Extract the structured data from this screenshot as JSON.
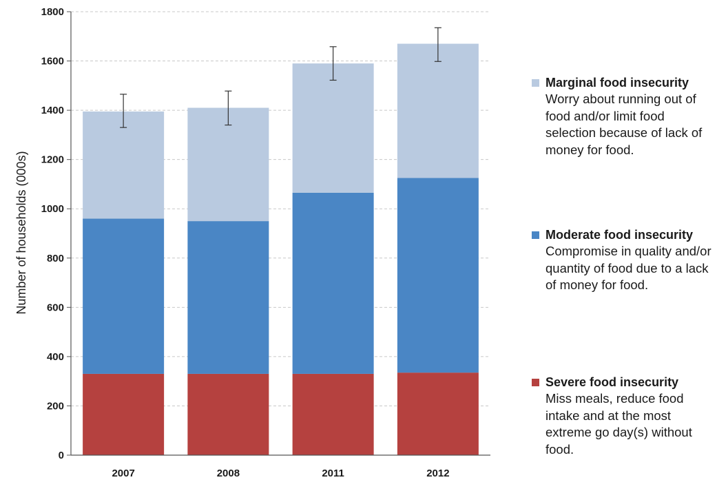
{
  "chart_data": {
    "type": "bar",
    "stacked": true,
    "categories": [
      "2007",
      "2008",
      "2011",
      "2012"
    ],
    "series": [
      {
        "name": "Severe food insecurity",
        "color": "#b5413f",
        "values": [
          330,
          330,
          330,
          335
        ]
      },
      {
        "name": "Moderate food insecurity",
        "color": "#4a86c5",
        "values": [
          630,
          620,
          735,
          790
        ]
      },
      {
        "name": "Marginal food insecurity",
        "color": "#b9cae0",
        "values": [
          435,
          460,
          525,
          545
        ]
      }
    ],
    "totals": [
      1395,
      1410,
      1590,
      1670
    ],
    "error_bars": [
      {
        "low": 1330,
        "high": 1465
      },
      {
        "low": 1340,
        "high": 1478
      },
      {
        "low": 1522,
        "high": 1658
      },
      {
        "low": 1598,
        "high": 1735
      }
    ],
    "ylabel": "Number of households (000s)",
    "xlabel": "",
    "ylim": [
      0,
      1800
    ],
    "yticks": [
      "0",
      "200",
      "400",
      "600",
      "800",
      "1000",
      "1200",
      "1400",
      "1600",
      "1800"
    ],
    "grid": "dashed horizontal",
    "legend_placement": "right"
  },
  "legend": [
    {
      "title": "Marginal food insecurity",
      "description": "Worry about running out of food and/or limit food selection because of lack of money for food.",
      "color": "#b9cae0"
    },
    {
      "title": "Moderate food insecurity",
      "description": "Compromise in quality and/or quantity of food due to a lack of money for food.",
      "color": "#4a86c5"
    },
    {
      "title": "Severe food insecurity",
      "description": "Miss meals, reduce food intake and at the most extreme go day(s) without food.",
      "color": "#b5413f"
    }
  ]
}
